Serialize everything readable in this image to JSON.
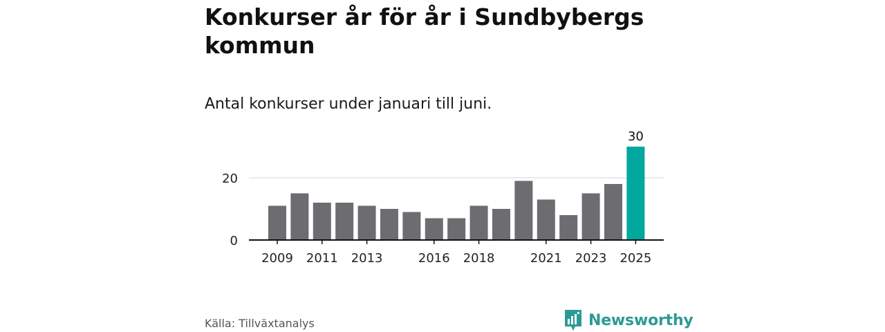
{
  "chart_data": {
    "type": "bar",
    "title": "Konkurser år för år i Sundbybergs kommun",
    "subtitle": "Antal konkurser under januari till juni.",
    "categories": [
      "2009",
      "2010",
      "2011",
      "2012",
      "2013",
      "2014",
      "2015",
      "2016",
      "2017",
      "2018",
      "2019",
      "2020",
      "2021",
      "2022",
      "2023",
      "2024",
      "2025"
    ],
    "values": [
      11,
      15,
      12,
      12,
      11,
      10,
      9,
      7,
      7,
      11,
      10,
      19,
      13,
      8,
      15,
      18,
      30
    ],
    "x_tick_labels": [
      "2009",
      "2011",
      "2013",
      "2016",
      "2018",
      "2021",
      "2023",
      "2025"
    ],
    "y_ticks": [
      0,
      20
    ],
    "ylim": [
      0,
      30
    ],
    "highlight": {
      "category": "2025",
      "label": "30"
    },
    "grid": true,
    "legend": "none",
    "colors": {
      "default": "#6d6c71",
      "highlight": "#00a89d",
      "grid": "#d6d6d6",
      "axis": "#111111"
    }
  },
  "source": "Källa: Tillväxtanalys",
  "brand": {
    "name": "Newsworthy",
    "icon": "newsworthy-logo-icon",
    "color": "#2c9a94"
  }
}
